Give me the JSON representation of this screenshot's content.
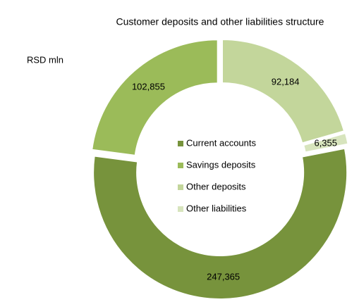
{
  "chart_data": {
    "type": "donut",
    "title": "Customer deposits and other liabilities structure",
    "unit_label": "RSD mln",
    "categories": [
      "Current accounts",
      "Savings deposits",
      "Other deposits",
      "Other liabilities"
    ],
    "values": [
      247365,
      102855,
      92184,
      6355
    ],
    "value_labels": [
      "247,365",
      "102,855",
      "92,184",
      "6,355"
    ],
    "colors": [
      "#77933c",
      "#9bbb59",
      "#c3d69b",
      "#d7e4bd"
    ],
    "legend": "center"
  }
}
